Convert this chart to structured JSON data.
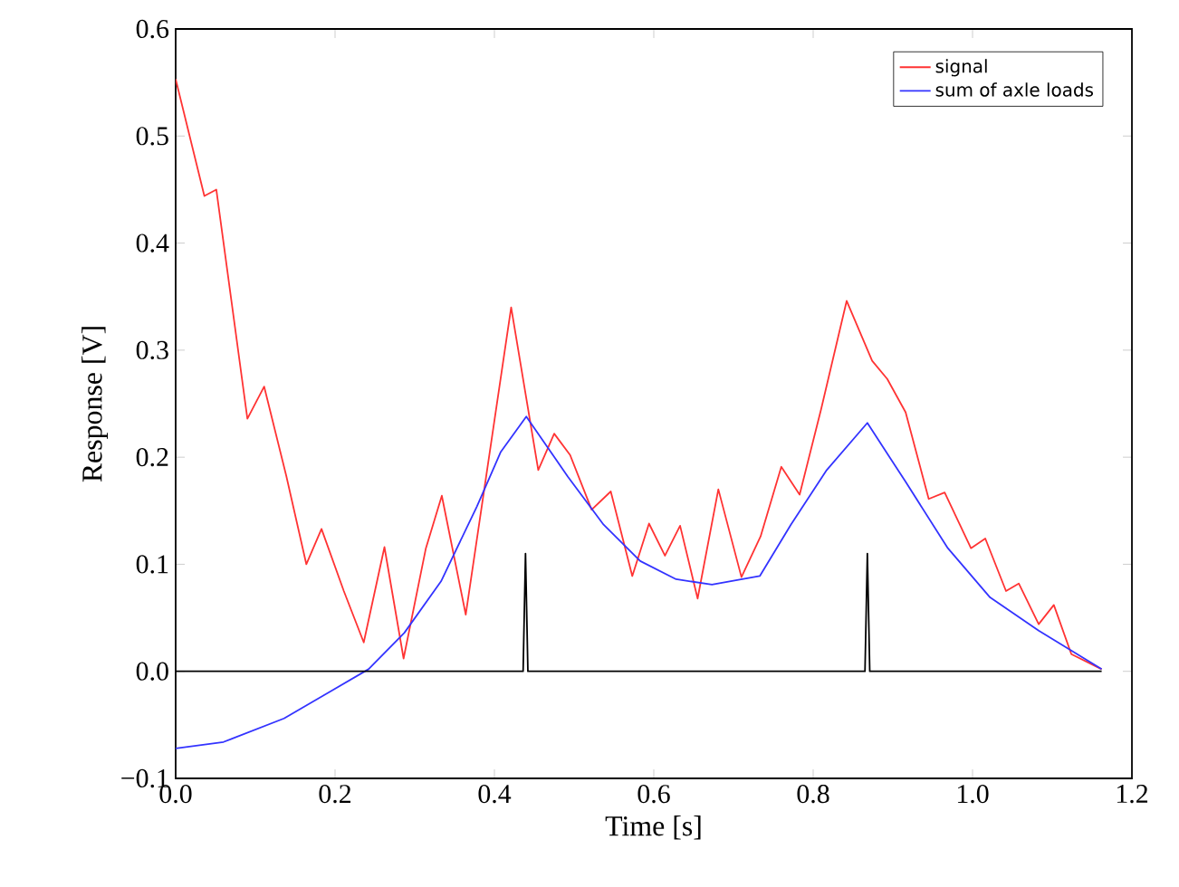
{
  "chart_data": {
    "type": "line",
    "xlabel": "Time [s]",
    "ylabel": "Response [V]",
    "series": [
      {
        "name": "signal",
        "color": "#ff3333",
        "x": [
          0.0,
          0.036,
          0.051,
          0.09,
          0.111,
          0.139,
          0.164,
          0.183,
          0.211,
          0.236,
          0.262,
          0.286,
          0.314,
          0.334,
          0.364,
          0.421,
          0.455,
          0.475,
          0.495,
          0.522,
          0.546,
          0.573,
          0.594,
          0.614,
          0.633,
          0.655,
          0.681,
          0.71,
          0.734,
          0.76,
          0.783,
          0.81,
          0.842,
          0.874,
          0.893,
          0.916,
          0.945,
          0.965,
          0.998,
          1.016,
          1.042,
          1.058,
          1.083,
          1.102,
          1.124,
          1.162
        ],
        "values": [
          0.553,
          0.444,
          0.45,
          0.236,
          0.266,
          0.182,
          0.1,
          0.133,
          0.075,
          0.027,
          0.116,
          0.012,
          0.115,
          0.164,
          0.053,
          0.34,
          0.188,
          0.222,
          0.202,
          0.151,
          0.168,
          0.089,
          0.138,
          0.108,
          0.136,
          0.068,
          0.17,
          0.088,
          0.126,
          0.191,
          0.165,
          0.245,
          0.346,
          0.29,
          0.273,
          0.242,
          0.161,
          0.167,
          0.115,
          0.124,
          0.075,
          0.082,
          0.044,
          0.062,
          0.016,
          0.002
        ]
      },
      {
        "name": "sum of axle loads",
        "color": "#3333ff",
        "x": [
          0.0,
          0.06,
          0.136,
          0.196,
          0.242,
          0.287,
          0.333,
          0.378,
          0.408,
          0.44,
          0.492,
          0.537,
          0.583,
          0.628,
          0.673,
          0.733,
          0.772,
          0.817,
          0.868,
          0.916,
          0.969,
          1.022,
          1.083,
          1.162
        ],
        "values": [
          -0.072,
          -0.066,
          -0.044,
          -0.018,
          0.002,
          0.036,
          0.084,
          0.154,
          0.205,
          0.238,
          0.182,
          0.137,
          0.103,
          0.086,
          0.081,
          0.089,
          0.137,
          0.188,
          0.232,
          0.177,
          0.115,
          0.069,
          0.038,
          0.002
        ]
      },
      {
        "color": "#000000",
        "x": [
          0.0,
          0.436,
          0.439,
          0.442,
          0.865,
          0.868,
          0.871,
          1.162
        ],
        "values": [
          0,
          0,
          0.11,
          0,
          0,
          0.11,
          0,
          0
        ]
      }
    ],
    "xlim": [
      0.0,
      1.2
    ],
    "ylim": [
      -0.1,
      0.6
    ],
    "xticks": [
      {
        "value": 0.0,
        "label": "0.0"
      },
      {
        "value": 0.2,
        "label": "0.2"
      },
      {
        "value": 0.4,
        "label": "0.4"
      },
      {
        "value": 0.6,
        "label": "0.6"
      },
      {
        "value": 0.8,
        "label": "0.8"
      },
      {
        "value": 1.0,
        "label": "1.0"
      },
      {
        "value": 1.2,
        "label": "1.2"
      }
    ],
    "yticks": [
      {
        "value": -0.1,
        "label": "−0.1"
      },
      {
        "value": 0.0,
        "label": "0.0"
      },
      {
        "value": 0.1,
        "label": "0.1"
      },
      {
        "value": 0.2,
        "label": "0.2"
      },
      {
        "value": 0.3,
        "label": "0.3"
      },
      {
        "value": 0.4,
        "label": "0.4"
      },
      {
        "value": 0.5,
        "label": "0.5"
      },
      {
        "value": 0.6,
        "label": "0.6"
      }
    ],
    "legend": "top right",
    "grid": false,
    "marker": "none",
    "line_style": "solid"
  }
}
